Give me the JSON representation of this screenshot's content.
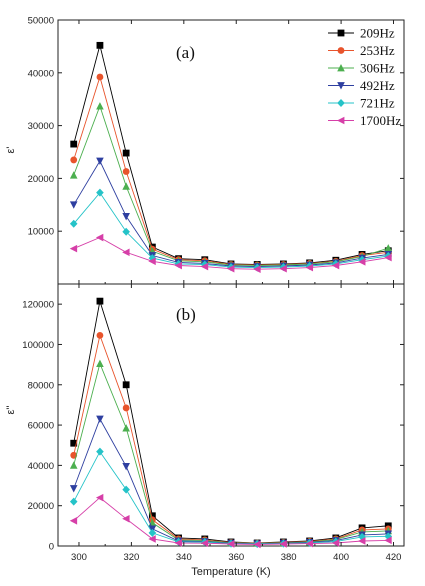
{
  "chart_data": [
    {
      "type": "line",
      "panel_label": "(a)",
      "ylabel": "ε'",
      "xlabel": "",
      "x": [
        298,
        308,
        318,
        328,
        338,
        348,
        358,
        368,
        378,
        388,
        398,
        408,
        418
      ],
      "xticks": [
        "300",
        "320",
        "340",
        "360",
        "380",
        "400",
        "420"
      ],
      "xlim": [
        292,
        424
      ],
      "ylim": [
        0,
        50000
      ],
      "yticks": [
        "10000",
        "20000",
        "30000",
        "40000",
        "50000"
      ],
      "series": [
        {
          "name": "209Hz",
          "color": "#000000",
          "marker": "square",
          "values": [
            26500,
            45200,
            24800,
            7000,
            4800,
            4600,
            3800,
            3700,
            3800,
            4000,
            4500,
            5600,
            6300
          ]
        },
        {
          "name": "253Hz",
          "color": "#e8542c",
          "marker": "circle",
          "values": [
            23500,
            39200,
            21300,
            6600,
            4600,
            4400,
            3700,
            3600,
            3700,
            3900,
            4300,
            5400,
            6000
          ]
        },
        {
          "name": "306Hz",
          "color": "#4caf4f",
          "marker": "triangle-up",
          "values": [
            20600,
            33700,
            18500,
            6200,
            4400,
            4200,
            3600,
            3500,
            3600,
            3800,
            4200,
            5200,
            6800
          ]
        },
        {
          "name": "492Hz",
          "color": "#2e3fa0",
          "marker": "triangle-down",
          "values": [
            15000,
            23300,
            12800,
            5400,
            4100,
            3900,
            3400,
            3300,
            3400,
            3600,
            4000,
            4900,
            5600
          ]
        },
        {
          "name": "721Hz",
          "color": "#25c3c8",
          "marker": "diamond",
          "values": [
            11400,
            17300,
            9900,
            4900,
            3800,
            3700,
            3200,
            3100,
            3200,
            3400,
            3800,
            4600,
            5300
          ]
        },
        {
          "name": "1700Hz",
          "color": "#d63fa8",
          "marker": "triangle-left",
          "values": [
            6700,
            8800,
            6000,
            4300,
            3500,
            3300,
            2900,
            2800,
            2900,
            3100,
            3500,
            4200,
            5000
          ]
        }
      ],
      "legend": "top-right"
    },
    {
      "type": "line",
      "panel_label": "(b)",
      "ylabel": "ε''",
      "xlabel": "Temperature (K)",
      "x": [
        298,
        308,
        318,
        328,
        338,
        348,
        358,
        368,
        378,
        388,
        398,
        408,
        418
      ],
      "xticks": [
        "300",
        "320",
        "340",
        "360",
        "380",
        "400",
        "420"
      ],
      "xlim": [
        292,
        424
      ],
      "ylim": [
        0,
        130000
      ],
      "yticks": [
        "0",
        "20000",
        "40000",
        "60000",
        "80000",
        "100000",
        "120000"
      ],
      "series": [
        {
          "name": "209Hz",
          "color": "#000000",
          "marker": "square",
          "values": [
            51000,
            121500,
            80000,
            15000,
            4000,
            3500,
            2000,
            1500,
            2000,
            2500,
            4000,
            9000,
            10000
          ]
        },
        {
          "name": "253Hz",
          "color": "#e8542c",
          "marker": "circle",
          "values": [
            45000,
            104500,
            68500,
            13000,
            3500,
            3000,
            1800,
            1400,
            1800,
            2300,
            3500,
            8000,
            8500
          ]
        },
        {
          "name": "306Hz",
          "color": "#4caf4f",
          "marker": "triangle-up",
          "values": [
            40000,
            90500,
            58500,
            11500,
            3000,
            2700,
            1600,
            1300,
            1600,
            2000,
            3200,
            7000,
            7500
          ]
        },
        {
          "name": "492Hz",
          "color": "#2e3fa0",
          "marker": "triangle-down",
          "values": [
            28500,
            63000,
            39500,
            8500,
            2500,
            2200,
            1400,
            1100,
            1400,
            1800,
            2700,
            5500,
            6000
          ]
        },
        {
          "name": "721Hz",
          "color": "#25c3c8",
          "marker": "diamond",
          "values": [
            22000,
            46800,
            28000,
            6500,
            2100,
            1900,
            1200,
            1000,
            1200,
            1500,
            2200,
            4500,
            4800
          ]
        },
        {
          "name": "1700Hz",
          "color": "#d63fa8",
          "marker": "triangle-left",
          "values": [
            12500,
            24000,
            13500,
            3500,
            1500,
            1400,
            1000,
            800,
            1000,
            1200,
            1500,
            2500,
            2800
          ]
        }
      ]
    }
  ]
}
